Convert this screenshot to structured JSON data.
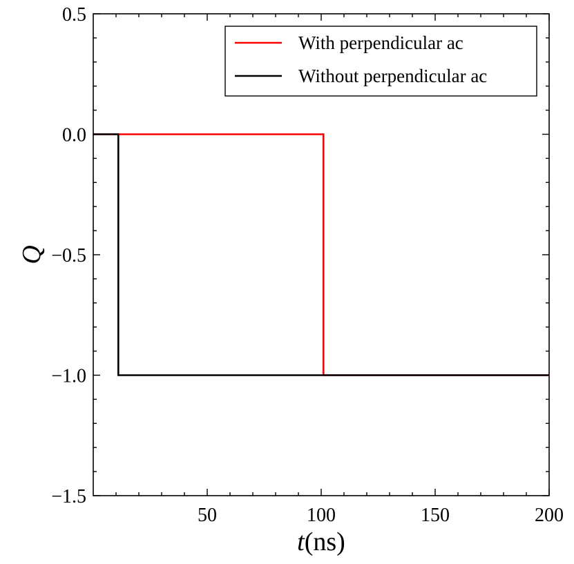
{
  "chart_data": {
    "type": "line",
    "xlabel": "t(ns)",
    "xlabel_parts": {
      "var": "t",
      "unit": "(ns)"
    },
    "ylabel": "Q",
    "xlim": [
      0,
      200
    ],
    "ylim": [
      -1.5,
      0.5
    ],
    "grid": false,
    "legend_position": "top-right",
    "x_ticks": [
      50,
      100,
      150,
      200
    ],
    "x_tick_labels": [
      "50",
      "100",
      "150",
      "200"
    ],
    "y_ticks": [
      0.5,
      0.0,
      -0.5,
      -1.0,
      -1.5
    ],
    "y_tick_labels": [
      "0.5",
      "0.0",
      "−0.5",
      "−1.0",
      "−1.5"
    ],
    "series": [
      {
        "name": "With perpendicular ac",
        "color": "#ff0000",
        "x": [
          0,
          101,
          101,
          200
        ],
        "y": [
          0,
          0,
          -1,
          -1
        ]
      },
      {
        "name": "Without perpendicular ac",
        "color": "#000000",
        "x": [
          0,
          11,
          11,
          200
        ],
        "y": [
          0,
          0,
          -1,
          -1
        ]
      }
    ]
  }
}
